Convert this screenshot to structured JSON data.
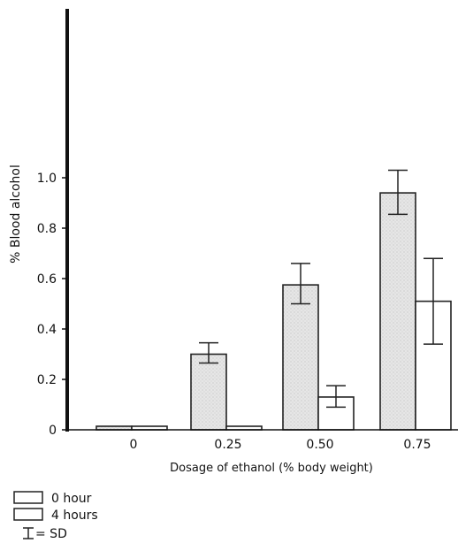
{
  "chart_data": {
    "type": "bar",
    "title": "",
    "xlabel": "Dosage of ethanol (% body weight)",
    "ylabel": "% Blood alcohol",
    "categories": [
      "0",
      "0.25",
      "0.50",
      "0.75"
    ],
    "series": [
      {
        "name": "0 hour",
        "values": [
          0.0,
          0.3,
          0.575,
          0.94
        ],
        "sd_low": [
          0.0,
          0.265,
          0.5,
          0.855
        ],
        "sd_high": [
          0.0,
          0.345,
          0.66,
          1.03
        ],
        "fill": "#e6e6e6"
      },
      {
        "name": "4 hours",
        "values": [
          0.0,
          0.005,
          0.13,
          0.51
        ],
        "sd_low": [
          0.0,
          0.005,
          0.09,
          0.34
        ],
        "sd_high": [
          0.0,
          0.005,
          0.175,
          0.68
        ],
        "fill": "#ffffff"
      }
    ],
    "yticks": [
      "0",
      "0.2",
      "0.4",
      "0.6",
      "0.8",
      "1.0"
    ],
    "ylim": [
      0,
      1.2
    ],
    "grid": false,
    "legend": {
      "placement": "bottom-left",
      "sd_label": "= SD"
    },
    "colors": {
      "axis": "#111111",
      "bar_stroke": "#222222"
    }
  }
}
